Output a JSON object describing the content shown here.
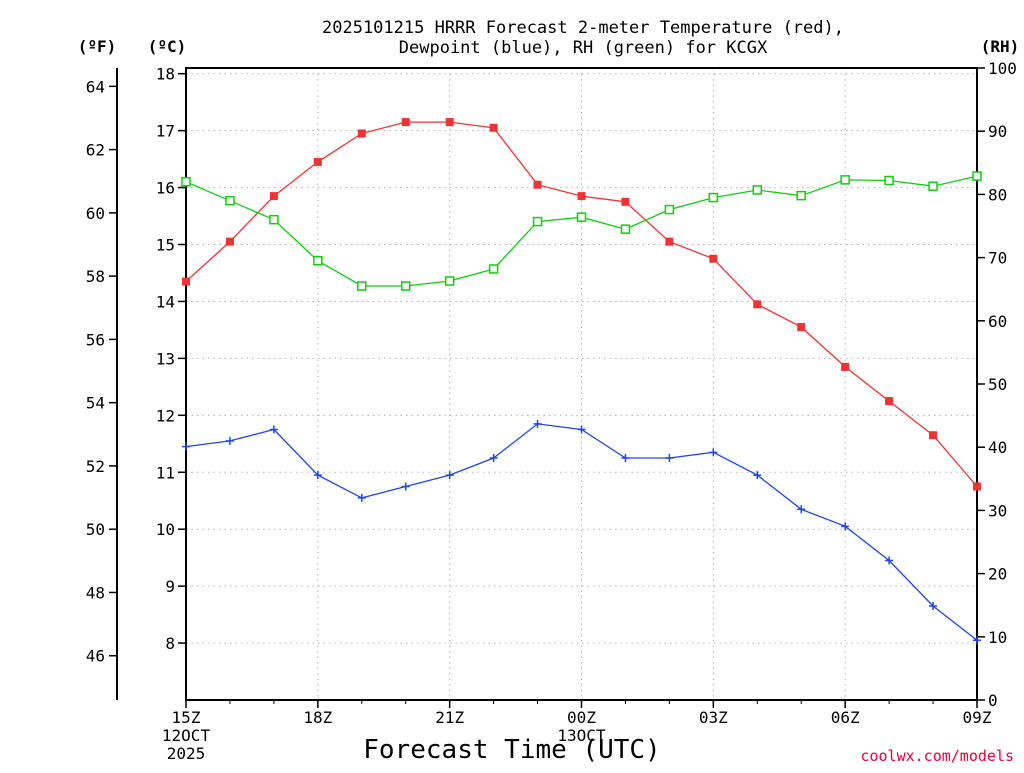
{
  "colors": {
    "temperature": "#ee3333",
    "dewpoint": "#2244ee",
    "rh": "#11cc11",
    "credit": "#e8003a",
    "grid": "#b0b0b0"
  },
  "chart_data": {
    "type": "line",
    "title": "2025101215 HRRR Forecast 2-meter Temperature (red),",
    "subtitle": "Dewpoint (blue), RH (green) for KCGX",
    "xlabel": "Forecast Time (UTC)",
    "credit": "coolwx.com/models",
    "units": {
      "fahrenheit": "(ºF)",
      "celsius": "(ºC)",
      "rh": "(RH)"
    },
    "x_hours": [
      0,
      1,
      2,
      3,
      4,
      5,
      6,
      7,
      8,
      9,
      10,
      11,
      12,
      13,
      14,
      15,
      16,
      17,
      18
    ],
    "xlim": [
      0,
      18
    ],
    "x_ticks": [
      {
        "hour": 0,
        "label": "15Z",
        "date1": "12OCT",
        "date2": "2025"
      },
      {
        "hour": 3,
        "label": "18Z"
      },
      {
        "hour": 6,
        "label": "21Z"
      },
      {
        "hour": 9,
        "label": "00Z",
        "date1": "13OCT"
      },
      {
        "hour": 12,
        "label": "03Z"
      },
      {
        "hour": 15,
        "label": "06Z"
      },
      {
        "hour": 18,
        "label": "09Z"
      }
    ],
    "y_celsius": {
      "ylim": [
        7.0,
        18.1
      ],
      "ticks": [
        8,
        9,
        10,
        11,
        12,
        13,
        14,
        15,
        16,
        17,
        18
      ]
    },
    "y_fahrenheit": {
      "ticks": [
        46,
        48,
        50,
        52,
        54,
        56,
        58,
        60,
        62,
        64
      ]
    },
    "y_rh": {
      "ylim": [
        0,
        100
      ],
      "ticks": [
        0,
        10,
        20,
        30,
        40,
        50,
        60,
        70,
        80,
        90,
        100
      ]
    },
    "series": [
      {
        "name": "Temperature",
        "axis": "celsius",
        "marker": "filled-square",
        "color": "#ee3333",
        "values": [
          14.35,
          15.05,
          15.85,
          16.45,
          16.95,
          17.15,
          17.15,
          17.05,
          16.05,
          15.85,
          15.75,
          15.05,
          14.75,
          13.95,
          13.55,
          12.85,
          12.25,
          11.65,
          10.75
        ]
      },
      {
        "name": "Dewpoint",
        "axis": "celsius",
        "marker": "plus",
        "color": "#2244ee",
        "values": [
          11.45,
          11.55,
          11.75,
          10.95,
          10.55,
          10.75,
          10.95,
          11.25,
          11.85,
          11.75,
          11.25,
          11.25,
          11.35,
          10.95,
          10.35,
          10.05,
          9.45,
          8.65,
          8.05
        ]
      },
      {
        "name": "RH",
        "axis": "rh",
        "marker": "open-square",
        "color": "#11cc11",
        "values": [
          82.0,
          79.0,
          76.0,
          69.5,
          65.5,
          65.5,
          66.3,
          68.2,
          75.7,
          76.4,
          74.5,
          77.6,
          79.5,
          80.7,
          79.8,
          82.3,
          82.2,
          81.3,
          82.9
        ]
      }
    ]
  }
}
